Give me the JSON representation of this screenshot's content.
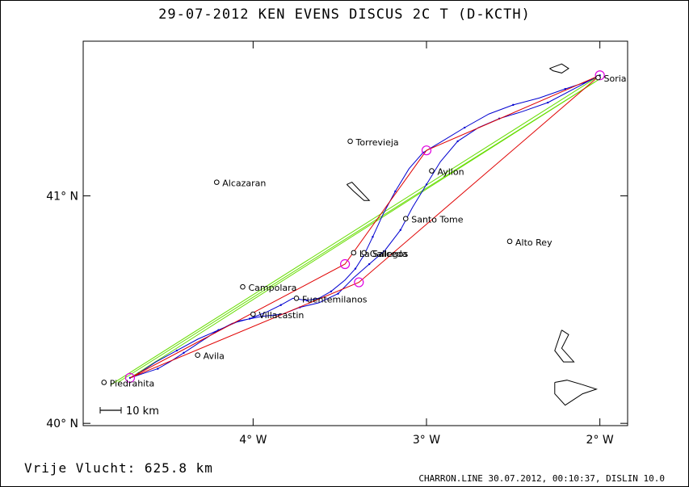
{
  "header": {
    "title": "29-07-2012   KEN EVENS   DISCUS 2C T (D-KCTH)"
  },
  "footer": {
    "distance": "Vrije Vlucht:  625.8 km",
    "info": "CHARRON.LINE 30.07.2012, 00:10:37, DISLIN 10.0"
  },
  "scale_bar": {
    "label": "10 km"
  },
  "colors": {
    "track": "#0000d0",
    "optimized_route": "#e00000",
    "alternate_route": "#66dd00",
    "turnpoint": "#e000e0",
    "terrain_outline": "#000000"
  },
  "chart_data": {
    "type": "scatter",
    "title": "29-07-2012   KEN EVENS   DISCUS 2C T (D-KCTH)",
    "x_axis": {
      "min": -4.98,
      "max": -1.84,
      "ticks": [
        -4,
        -3,
        -2
      ],
      "tick_labels": [
        "4° W",
        "3° W",
        "2° W"
      ]
    },
    "y_axis": {
      "min": 39.99,
      "max": 41.68,
      "ticks": [
        40,
        41
      ],
      "tick_labels": [
        "40° N",
        "41° N"
      ]
    },
    "grid": false,
    "cities": [
      {
        "name": "Soria",
        "lon": -2.01,
        "lat": 41.52
      },
      {
        "name": "Torrevieja",
        "lon": -3.44,
        "lat": 41.24
      },
      {
        "name": "Ayllon",
        "lon": -2.97,
        "lat": 41.11
      },
      {
        "name": "Alcazaran",
        "lon": -4.21,
        "lat": 41.06
      },
      {
        "name": "Santo Tome",
        "lon": -3.12,
        "lat": 40.9
      },
      {
        "name": "Alto Rey",
        "lon": -2.52,
        "lat": 40.8
      },
      {
        "name": "Gallegos",
        "lon": -3.36,
        "lat": 40.75
      },
      {
        "name": "La Salceda",
        "lon": -3.42,
        "lat": 40.75
      },
      {
        "name": "Campolara",
        "lon": -4.06,
        "lat": 40.6
      },
      {
        "name": "Fuentemilanos",
        "lon": -3.75,
        "lat": 40.55
      },
      {
        "name": "Villacastin",
        "lon": -4.0,
        "lat": 40.48
      },
      {
        "name": "Avila",
        "lon": -4.32,
        "lat": 40.3
      },
      {
        "name": "Piedrahita",
        "lon": -4.86,
        "lat": 40.18
      }
    ],
    "turnpoints": [
      {
        "lon": -4.71,
        "lat": 40.2
      },
      {
        "lon": -3.0,
        "lat": 41.2
      },
      {
        "lon": -2.0,
        "lat": 41.53
      },
      {
        "lon": -3.39,
        "lat": 40.62
      },
      {
        "lon": -3.47,
        "lat": 40.7
      }
    ],
    "optimized_route": [
      [
        -4.71,
        40.2
      ],
      [
        -3.47,
        40.7
      ],
      [
        -3.0,
        41.2
      ],
      [
        -2.0,
        41.53
      ],
      [
        -3.39,
        40.62
      ],
      [
        -4.71,
        40.2
      ]
    ],
    "alternate_routes": [
      [
        [
          -4.82,
          40.17
        ],
        [
          -2.02,
          41.52
        ]
      ],
      [
        [
          -4.78,
          40.18
        ],
        [
          -2.03,
          41.5
        ]
      ],
      [
        [
          -4.71,
          40.2
        ],
        [
          -2.01,
          41.51
        ]
      ]
    ],
    "flight_track": [
      [
        -4.71,
        40.2
      ],
      [
        -4.63,
        40.22
      ],
      [
        -4.55,
        40.24
      ],
      [
        -4.48,
        40.27
      ],
      [
        -4.4,
        40.31
      ],
      [
        -4.32,
        40.35
      ],
      [
        -4.22,
        40.4
      ],
      [
        -4.12,
        40.44
      ],
      [
        -4.02,
        40.46
      ],
      [
        -3.92,
        40.49
      ],
      [
        -3.84,
        40.52
      ],
      [
        -3.77,
        40.55
      ],
      [
        -3.69,
        40.54
      ],
      [
        -3.62,
        40.55
      ],
      [
        -3.55,
        40.58
      ],
      [
        -3.47,
        40.63
      ],
      [
        -3.41,
        40.68
      ],
      [
        -3.36,
        40.74
      ],
      [
        -3.31,
        40.82
      ],
      [
        -3.25,
        40.92
      ],
      [
        -3.18,
        41.02
      ],
      [
        -3.1,
        41.12
      ],
      [
        -3.02,
        41.19
      ],
      [
        -2.91,
        41.24
      ],
      [
        -2.78,
        41.3
      ],
      [
        -2.64,
        41.36
      ],
      [
        -2.5,
        41.4
      ],
      [
        -2.35,
        41.43
      ],
      [
        -2.2,
        41.47
      ],
      [
        -2.08,
        41.5
      ],
      [
        -2.0,
        41.53
      ],
      [
        -2.15,
        41.47
      ],
      [
        -2.3,
        41.41
      ],
      [
        -2.45,
        41.37
      ],
      [
        -2.58,
        41.34
      ],
      [
        -2.7,
        41.3
      ],
      [
        -2.82,
        41.24
      ],
      [
        -2.92,
        41.15
      ],
      [
        -3.0,
        41.05
      ],
      [
        -3.08,
        40.95
      ],
      [
        -3.15,
        40.85
      ],
      [
        -3.24,
        40.76
      ],
      [
        -3.33,
        40.7
      ],
      [
        -3.42,
        40.64
      ],
      [
        -3.51,
        40.57
      ],
      [
        -3.62,
        40.53
      ],
      [
        -3.73,
        40.51
      ],
      [
        -3.83,
        40.48
      ],
      [
        -3.95,
        40.47
      ],
      [
        -4.08,
        40.45
      ],
      [
        -4.2,
        40.41
      ],
      [
        -4.32,
        40.37
      ],
      [
        -4.44,
        40.32
      ],
      [
        -4.56,
        40.27
      ],
      [
        -4.66,
        40.22
      ],
      [
        -4.71,
        40.2
      ]
    ],
    "terrain_features": [
      [
        [
          -2.29,
          41.56
        ],
        [
          -2.22,
          41.58
        ],
        [
          -2.18,
          41.56
        ],
        [
          -2.22,
          41.54
        ],
        [
          -2.27,
          41.55
        ],
        [
          -2.29,
          41.56
        ]
      ],
      [
        [
          -3.46,
          41.05
        ],
        [
          -3.42,
          41.02
        ],
        [
          -3.36,
          40.98
        ],
        [
          -3.33,
          40.98
        ],
        [
          -3.38,
          41.02
        ],
        [
          -3.43,
          41.06
        ],
        [
          -3.46,
          41.05
        ]
      ],
      [
        [
          -2.22,
          40.41
        ],
        [
          -2.18,
          40.39
        ],
        [
          -2.22,
          40.33
        ],
        [
          -2.15,
          40.27
        ],
        [
          -2.21,
          40.27
        ],
        [
          -2.26,
          40.32
        ],
        [
          -2.22,
          40.41
        ]
      ],
      [
        [
          -2.26,
          40.18
        ],
        [
          -2.19,
          40.19
        ],
        [
          -2.1,
          40.17
        ],
        [
          -2.02,
          40.15
        ],
        [
          -2.1,
          40.13
        ],
        [
          -2.2,
          40.08
        ],
        [
          -2.26,
          40.13
        ],
        [
          -2.26,
          40.18
        ]
      ]
    ]
  }
}
